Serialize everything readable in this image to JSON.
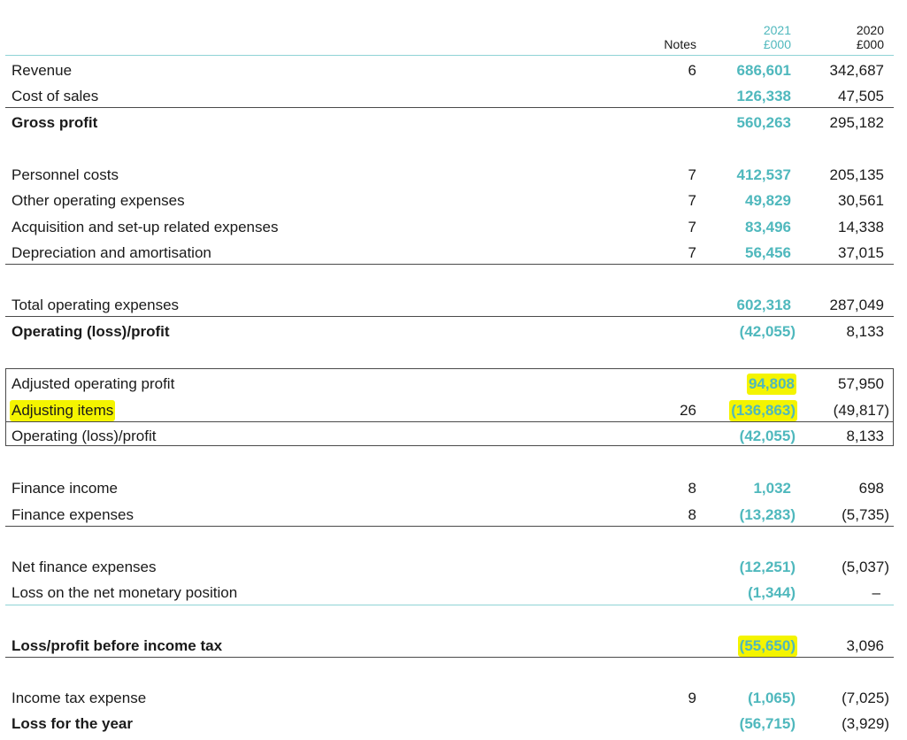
{
  "columns": {
    "notes": "Notes",
    "year_2021": "2021",
    "unit_2021": "£000",
    "year_2020": "2020",
    "unit_2020": "£000"
  },
  "rows": [
    {
      "label": "Revenue",
      "note": "6",
      "v2021": "686,601",
      "v2020": "342,687"
    },
    {
      "label": "Cost of sales",
      "note": "",
      "v2021": "126,338",
      "v2020": "47,505"
    },
    {
      "label": "Gross profit",
      "note": "",
      "v2021": "560,263",
      "v2020": "295,182"
    },
    {
      "label": "Personnel costs",
      "note": "7",
      "v2021": "412,537",
      "v2020": "205,135"
    },
    {
      "label": "Other operating expenses",
      "note": "7",
      "v2021": "49,829",
      "v2020": "30,561"
    },
    {
      "label": "Acquisition and set-up related expenses",
      "note": "7",
      "v2021": "83,496",
      "v2020": "14,338"
    },
    {
      "label": "Depreciation and amortisation",
      "note": "7",
      "v2021": "56,456",
      "v2020": "37,015"
    },
    {
      "label": "Total operating expenses",
      "note": "",
      "v2021": "602,318",
      "v2020": "287,049"
    },
    {
      "label": "Operating (loss)/profit",
      "note": "",
      "v2021": "(42,055)",
      "v2020": "8,133"
    },
    {
      "label": "Adjusted operating profit",
      "note": "",
      "v2021": "94,808",
      "v2020": "57,950"
    },
    {
      "label": "Adjusting items",
      "note": "26",
      "v2021": "(136,863)",
      "v2020": "(49,817)"
    },
    {
      "label": "Operating (loss)/profit",
      "note": "",
      "v2021": "(42,055)",
      "v2020": "8,133"
    },
    {
      "label": "Finance income",
      "note": "8",
      "v2021": "1,032",
      "v2020": "698"
    },
    {
      "label": "Finance expenses",
      "note": "8",
      "v2021": "(13,283)",
      "v2020": "(5,735)"
    },
    {
      "label": "Net finance expenses",
      "note": "",
      "v2021": "(12,251)",
      "v2020": "(5,037)"
    },
    {
      "label": "Loss on the net monetary position",
      "note": "",
      "v2021": "(1,344)",
      "v2020": "–"
    },
    {
      "label": "Loss/profit before income tax",
      "note": "",
      "v2021": "(55,650)",
      "v2020": "3,096"
    },
    {
      "label": "Income tax expense",
      "note": "9",
      "v2021": "(1,065)",
      "v2020": "(7,025)"
    },
    {
      "label": "Loss for the year",
      "note": "",
      "v2021": "(56,715)",
      "v2020": "(3,929)"
    }
  ],
  "colors": {
    "accent_2021": "#4fb8bd",
    "highlight": "#f4f400",
    "rule": "#4a4a4a",
    "rule_teal": "#8fd3d6"
  }
}
